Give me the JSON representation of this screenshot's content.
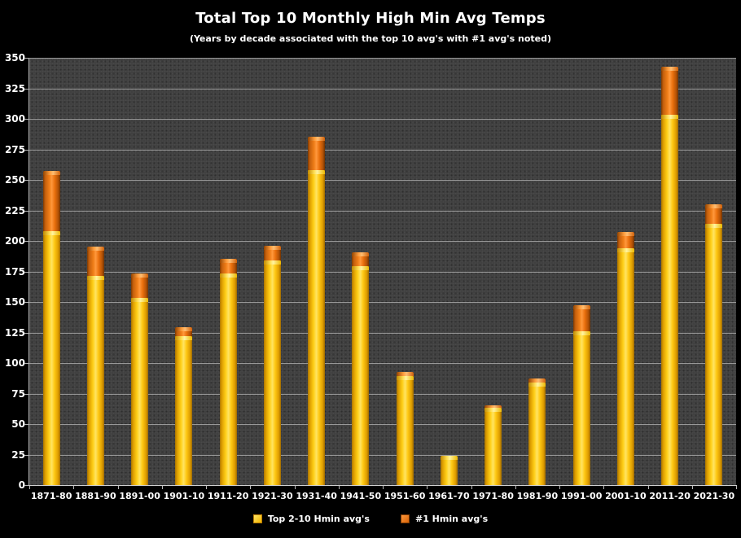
{
  "title": "Total Top 10 Monthly High Min Avg Temps",
  "subtitle": "(Years by decade associated with the top 10 avg's with #1 avg's noted)",
  "colors": {
    "background": "#000000",
    "plot_background": "#3E3E3E",
    "gridline": "#D0D0D0",
    "text": "#FFFFFF",
    "series_top2_10": "#FFC814",
    "series_no1": "#ED7112"
  },
  "legend": {
    "items": [
      {
        "label": "Top 2-10 Hmin avg's",
        "color": "#FFC814"
      },
      {
        "label": "#1 Hmin avg's",
        "color": "#ED7112"
      }
    ]
  },
  "chart_data": {
    "type": "bar",
    "stacked": true,
    "title": "Total Top 10 Monthly High Min Avg Temps",
    "subtitle": "(Years by decade associated with the top 10 avg's with #1 avg's noted)",
    "xlabel": "",
    "ylabel": "",
    "ylim": [
      0,
      350
    ],
    "y_ticks": [
      0,
      25,
      50,
      75,
      100,
      125,
      150,
      175,
      200,
      225,
      250,
      275,
      300,
      325,
      350
    ],
    "grid": true,
    "legend_position": "bottom",
    "categories": [
      "1871-80",
      "1881-90",
      "1891-00",
      "1901-10",
      "1911-20",
      "1921-30",
      "1931-40",
      "1941-50",
      "1951-60",
      "1961-70",
      "1971-80",
      "1981-90",
      "1991-00",
      "2001-10",
      "2011-20",
      "2021-30"
    ],
    "series": [
      {
        "name": "Top 2-10 Hmin avg's",
        "color": "#FFC814",
        "values": [
          208,
          171,
          153,
          122,
          173,
          184,
          258,
          179,
          89,
          24,
          63,
          84,
          126,
          194,
          303,
          214
        ]
      },
      {
        "name": "#1 Hmin avg's",
        "color": "#ED7112",
        "values": [
          49,
          24,
          20,
          7,
          12,
          12,
          27,
          11,
          3,
          0,
          2,
          3,
          21,
          13,
          39,
          16
        ]
      }
    ],
    "totals": [
      257,
      195,
      173,
      129,
      185,
      196,
      285,
      190,
      92,
      24,
      65,
      87,
      147,
      207,
      342,
      230
    ]
  }
}
